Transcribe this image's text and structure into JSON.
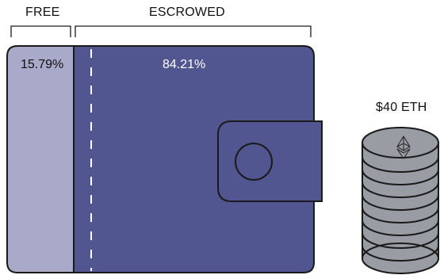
{
  "labels": {
    "free": "FREE",
    "escrowed": "ESCROWED",
    "free_percent": "15.79%",
    "escrowed_percent": "84.21%",
    "coin_value": "$40 ETH"
  },
  "chart_data": {
    "type": "diagram",
    "segments": [
      {
        "name": "FREE",
        "value": 15.79
      },
      {
        "name": "ESCROWED",
        "value": 84.21
      }
    ],
    "coin_label": "$40 ETH"
  },
  "colors": {
    "free_fill": "#a9a9c9",
    "escrowed_fill": "#515590",
    "coin_fill": "#9a9ca4",
    "stroke": "#1a1a1a",
    "dash": "#ffffff"
  },
  "icons": [
    "ethereum-icon",
    "wallet-clasp-icon"
  ]
}
